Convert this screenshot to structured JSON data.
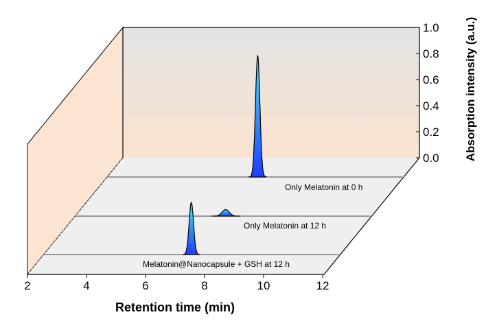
{
  "chart_data": {
    "type": "line",
    "subtype": "3d-waterfall",
    "title": "",
    "xlabel": "Retention time (min)",
    "ylabel": "Absorption intensity (a.u.)",
    "xlim": [
      2,
      12
    ],
    "ylim": [
      0,
      1.0
    ],
    "xticks": [
      "2",
      "4",
      "6",
      "8",
      "10",
      "12"
    ],
    "yticks": [
      "0.0",
      "0.2",
      "0.4",
      "0.6",
      "0.8",
      "1.0"
    ],
    "grid": false,
    "series": [
      {
        "name": "Only Melatonin at 0 h",
        "peaks": [
          {
            "x": 7.1,
            "y": 0.93
          }
        ]
      },
      {
        "name": "Only Melatonin at 12 h",
        "peaks": [
          {
            "x": 7.1,
            "y": 0.05
          }
        ]
      },
      {
        "name": "Melatonin@Nanocapsule + GSH at 12 h",
        "peaks": [
          {
            "x": 7.0,
            "y": 0.4
          }
        ]
      }
    ],
    "colors": {
      "peak_top": "#45e6f2",
      "peak_bottom": "#1f3cff",
      "wall": "#fbe3d0",
      "floor": "#efefef"
    }
  }
}
